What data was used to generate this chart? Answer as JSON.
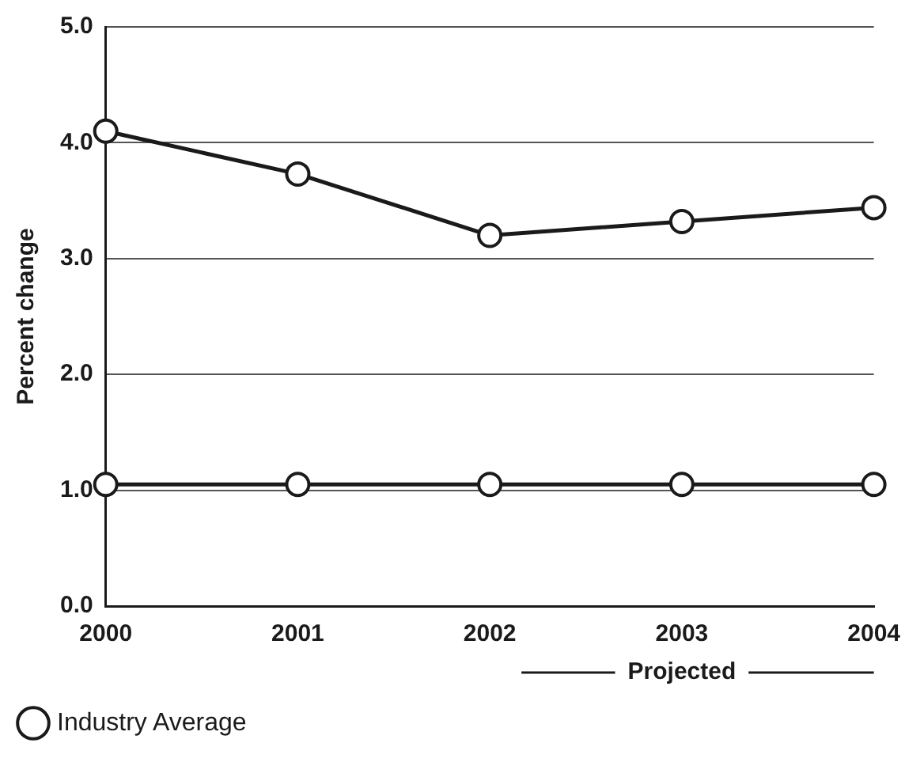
{
  "chart_data": {
    "type": "line",
    "ylabel": "Percent change",
    "categories": [
      "2000",
      "2001",
      "2002",
      "2003",
      "2004"
    ],
    "series": [
      {
        "color": "#1a1a1a",
        "values": [
          4.1,
          3.73,
          3.2,
          3.32,
          3.44
        ]
      },
      {
        "name": "Industry Average",
        "color": "#1a1a1a",
        "values": [
          1.05,
          1.05,
          1.05,
          1.05,
          1.05
        ]
      }
    ],
    "ylim": [
      0,
      5
    ],
    "yticks": [
      {
        "value": 0,
        "label": "0.0"
      },
      {
        "value": 1,
        "label": "1.0"
      },
      {
        "value": 2,
        "label": "2.0"
      },
      {
        "value": 3,
        "label": "3.0"
      },
      {
        "value": 4,
        "label": "4.0"
      },
      {
        "value": 5,
        "label": "5.0"
      }
    ],
    "grid": "y",
    "legend": "bottom left",
    "marker": "circle",
    "line_style": "solid",
    "annotations": [
      "Projected"
    ]
  }
}
